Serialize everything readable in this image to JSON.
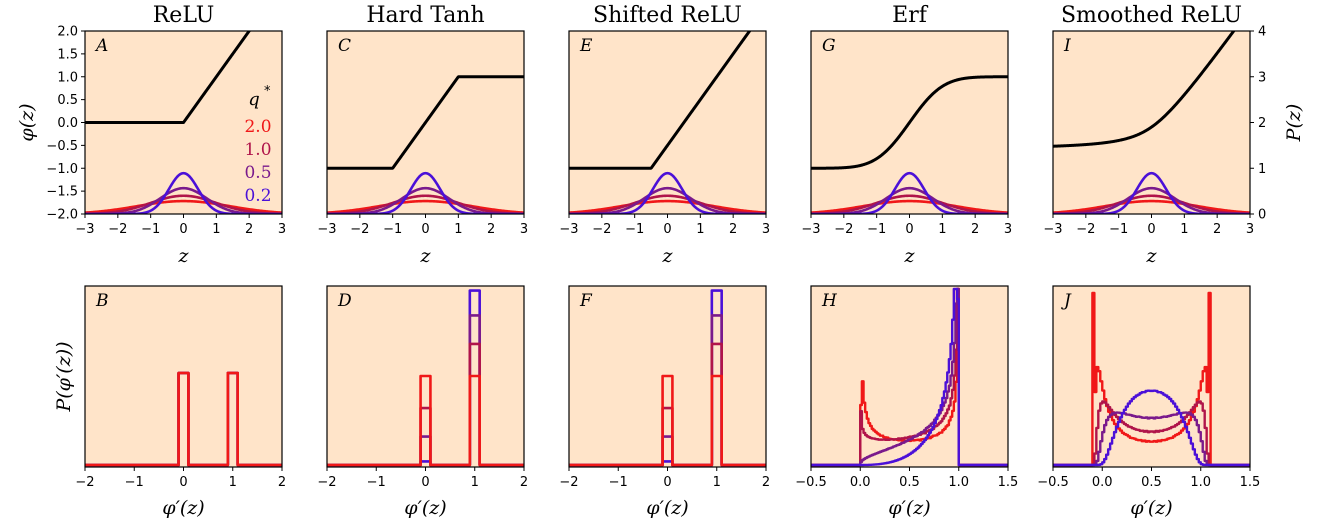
{
  "figure": {
    "columns": [
      {
        "title": "ReLU",
        "top_letter": "A",
        "bottom_letter": "B"
      },
      {
        "title": "Hard Tanh",
        "top_letter": "C",
        "bottom_letter": "D"
      },
      {
        "title": "Shifted ReLU",
        "top_letter": "E",
        "bottom_letter": "F"
      },
      {
        "title": "Erf",
        "top_letter": "G",
        "bottom_letter": "H"
      },
      {
        "title": "Smoothed ReLU",
        "top_letter": "I",
        "bottom_letter": "J"
      }
    ],
    "colors": {
      "panel_bg": "#FFE4C9",
      "activation": "#000000",
      "q_2.0": "#F01818",
      "q_1.0": "#B0144A",
      "q_0.5": "#7A1A8C",
      "q_0.2": "#4B10D8"
    },
    "legend": {
      "title": "q*",
      "entries": [
        "2.0",
        "1.0",
        "0.5",
        "0.2"
      ],
      "placement": "inside panel A, right"
    }
  },
  "chart_data": [
    {
      "type": "line",
      "row": "top",
      "xlabel": "z",
      "ylabel_left": "φ(z)",
      "ylabel_right": "P(z)",
      "xlim": [
        -3,
        3
      ],
      "ylim_left": [
        -2.0,
        2.0
      ],
      "ylim_right": [
        0,
        4
      ],
      "x_ticks": [
        "−3",
        "−2",
        "−1",
        "0",
        "1",
        "2",
        "3"
      ],
      "y_ticks_left": [
        "2.0",
        "1.5",
        "1.0",
        "0.5",
        "0.0",
        "−0.5",
        "−1.0",
        "−1.5",
        "−2.0"
      ],
      "y_ticks_right": [
        "4",
        "3",
        "2",
        "1",
        "0"
      ],
      "activations": [
        "ReLU",
        "Hard Tanh",
        "Shifted ReLU",
        "Erf",
        "Smoothed ReLU"
      ],
      "series": [
        {
          "name": "2.0",
          "q": 2.0,
          "peak_P": 0.28
        },
        {
          "name": "1.0",
          "q": 1.0,
          "peak_P": 0.4
        },
        {
          "name": "0.5",
          "q": 0.5,
          "peak_P": 0.56
        },
        {
          "name": "0.2",
          "q": 0.2,
          "peak_P": 0.89
        }
      ]
    },
    {
      "type": "line",
      "row": "bottom",
      "xlabel": "φ′(z)",
      "ylabel": "P(φ′(z))",
      "panels": [
        {
          "letter": "B",
          "xlim": [
            -2,
            2
          ],
          "x_ticks": [
            "−2",
            "−1",
            "0",
            "1",
            "2"
          ],
          "spikes": [
            {
              "x": 0,
              "heights": [
                1.0,
                1.0,
                1.0,
                1.0
              ]
            },
            {
              "x": 1,
              "heights": [
                1.0,
                1.0,
                1.0,
                1.0
              ]
            }
          ]
        },
        {
          "letter": "D",
          "xlim": [
            -2,
            2
          ],
          "x_ticks": [
            "−2",
            "−1",
            "0",
            "1",
            "2"
          ],
          "spikes": [
            {
              "x": 0,
              "heights": [
                0.5,
                0.32,
                0.16,
                0.02
              ]
            },
            {
              "x": 1,
              "heights": [
                0.5,
                0.68,
                0.84,
                0.98
              ]
            }
          ]
        },
        {
          "letter": "F",
          "xlim": [
            -2,
            2
          ],
          "x_ticks": [
            "−2",
            "−1",
            "0",
            "1",
            "2"
          ],
          "spikes": [
            {
              "x": 0,
              "heights": [
                0.5,
                0.32,
                0.16,
                0.02
              ]
            },
            {
              "x": 1,
              "heights": [
                0.5,
                0.68,
                0.84,
                0.98
              ]
            }
          ]
        },
        {
          "letter": "H",
          "xlim": [
            -0.5,
            1.5
          ],
          "x_ticks": [
            "−0.5",
            "0.0",
            "0.5",
            "1.0",
            "1.5"
          ]
        },
        {
          "letter": "J",
          "xlim": [
            -0.5,
            1.5
          ],
          "x_ticks": [
            "−0.5",
            "0.0",
            "0.5",
            "1.0",
            "1.5"
          ]
        }
      ]
    }
  ]
}
